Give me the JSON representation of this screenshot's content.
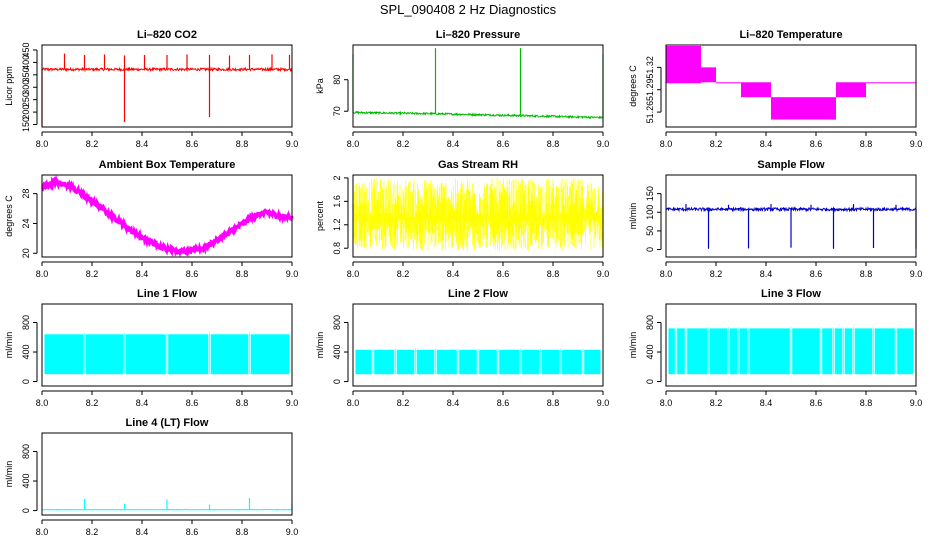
{
  "figure_title": "SPL_090408  2 Hz Diagnostics",
  "chart_data": [
    {
      "id": "co2",
      "type": "line",
      "title": "Li–820 CO2",
      "ylabel": "Licor ppm",
      "color": "#ff0000",
      "xlim": [
        8.0,
        9.0
      ],
      "ylim": [
        140,
        470
      ],
      "yticks": [
        150,
        200,
        250,
        300,
        350,
        400,
        450
      ],
      "series": [
        {
          "name": "CO2",
          "baseline": 372,
          "noise": 5,
          "dips": [
            [
              8.0,
              140
            ],
            [
              8.33,
              160
            ],
            [
              8.67,
              180
            ]
          ],
          "spikes": [
            [
              8.09,
              435
            ],
            [
              8.17,
              430
            ],
            [
              8.25,
              432
            ],
            [
              8.33,
              428
            ],
            [
              8.41,
              430
            ],
            [
              8.5,
              430
            ],
            [
              8.58,
              432
            ],
            [
              8.67,
              430
            ],
            [
              8.75,
              428
            ],
            [
              8.83,
              430
            ],
            [
              8.92,
              432
            ],
            [
              8.99,
              430
            ]
          ]
        }
      ]
    },
    {
      "id": "pressure",
      "type": "line",
      "title": "Li–820 Pressure",
      "ylabel": "kPa",
      "color": "#00bb00",
      "xlim": [
        8.0,
        9.0
      ],
      "ylim": [
        65,
        91
      ],
      "yticks": [
        70,
        80
      ],
      "series": [
        {
          "name": "Pressure",
          "points": [
            [
              8.0,
              69.6
            ],
            [
              8.33,
              69.2
            ],
            [
              8.67,
              68.6
            ],
            [
              9.0,
              68.0
            ]
          ],
          "noise": 0.3,
          "spikes": [
            [
              8.0,
              88
            ],
            [
              8.33,
              90
            ],
            [
              8.67,
              90
            ],
            [
              9.0,
              88
            ]
          ]
        }
      ]
    },
    {
      "id": "licor_temp",
      "type": "line",
      "title": "Li–820 Temperature",
      "ylabel": "degrees C",
      "color": "#ff00ff",
      "xlim": [
        8.0,
        9.0
      ],
      "ylim": [
        51.24,
        51.35
      ],
      "yticks": [
        51.26,
        51.29,
        51.32
      ],
      "series": [
        {
          "name": "Temperature",
          "bands": [
            [
              8.0,
              8.14,
              51.3,
              51.35
            ],
            [
              8.14,
              8.2,
              51.3,
              51.32
            ],
            [
              8.2,
              8.3,
              51.3,
              51.3
            ],
            [
              8.3,
              8.42,
              51.28,
              51.3
            ],
            [
              8.42,
              8.68,
              51.25,
              51.28
            ],
            [
              8.68,
              8.8,
              51.28,
              51.3
            ],
            [
              8.8,
              9.0,
              51.3,
              51.3
            ]
          ]
        }
      ]
    },
    {
      "id": "ambient_temp",
      "type": "line",
      "title": "Ambient Box Temperature",
      "ylabel": "degrees C",
      "color": "#ff00ff",
      "xlim": [
        8.0,
        9.0
      ],
      "ylim": [
        19.5,
        30.5
      ],
      "yticks": [
        20,
        24,
        28
      ],
      "series": [
        {
          "name": "Ambient",
          "points": [
            [
              8.0,
              28.8
            ],
            [
              8.05,
              29.6
            ],
            [
              8.1,
              29.2
            ],
            [
              8.2,
              27.0
            ],
            [
              8.3,
              24.5
            ],
            [
              8.4,
              22.0
            ],
            [
              8.5,
              20.6
            ],
            [
              8.57,
              20.2
            ],
            [
              8.65,
              20.8
            ],
            [
              8.75,
              22.8
            ],
            [
              8.85,
              25.0
            ],
            [
              8.9,
              25.5
            ],
            [
              8.95,
              25.0
            ],
            [
              9.0,
              24.8
            ]
          ],
          "noise": 0.3
        }
      ]
    },
    {
      "id": "rh",
      "type": "line",
      "title": "Gas Stream RH",
      "ylabel": "percent",
      "color": "#ffff00",
      "xlim": [
        8.0,
        9.0
      ],
      "ylim": [
        0.65,
        2.05
      ],
      "yticks": [
        0.8,
        1.2,
        1.6,
        2.0
      ],
      "series": [
        {
          "name": "RH",
          "min": 0.75,
          "max": 2.0,
          "center": 1.45
        }
      ]
    },
    {
      "id": "sample_flow",
      "type": "line",
      "title": "Sample Flow",
      "ylabel": "ml/min",
      "color": "#0000cc",
      "xlim": [
        8.0,
        9.0
      ],
      "ylim": [
        -20,
        200
      ],
      "yticks": [
        0,
        50,
        100,
        150
      ],
      "series": [
        {
          "name": "Sample",
          "baseline": 108,
          "noise": 4,
          "dips": [
            [
              8.17,
              2
            ],
            [
              8.33,
              3
            ],
            [
              8.5,
              5
            ],
            [
              8.67,
              2
            ],
            [
              8.83,
              4
            ],
            [
              9.0,
              2
            ]
          ],
          "spikes": [
            [
              8.08,
              122
            ],
            [
              8.25,
              120
            ],
            [
              8.42,
              122
            ],
            [
              8.58,
              120
            ],
            [
              8.75,
              122
            ],
            [
              8.92,
              120
            ]
          ]
        }
      ]
    },
    {
      "id": "line1",
      "type": "area",
      "title": "Line 1 Flow",
      "ylabel": "ml/min",
      "color": "#00ffff",
      "xlim": [
        8.0,
        9.0
      ],
      "ylim": [
        -60,
        1050
      ],
      "yticks": [
        0,
        400,
        800
      ],
      "series": [
        {
          "name": "Line 1",
          "low": 100,
          "high": 640,
          "gaps": [
            8.17,
            8.33,
            8.5,
            8.67,
            8.83
          ]
        }
      ]
    },
    {
      "id": "line2",
      "type": "area",
      "title": "Line 2 Flow",
      "ylabel": "ml/min",
      "color": "#00ffff",
      "xlim": [
        8.0,
        9.0
      ],
      "ylim": [
        -60,
        1050
      ],
      "yticks": [
        0,
        400,
        800
      ],
      "series": [
        {
          "name": "Line 2",
          "low": 100,
          "high": 430,
          "gaps": [
            8.08,
            8.17,
            8.25,
            8.33,
            8.42,
            8.5,
            8.58,
            8.67,
            8.75,
            8.83,
            8.92
          ]
        }
      ]
    },
    {
      "id": "line3",
      "type": "area",
      "title": "Line 3 Flow",
      "ylabel": "ml/min",
      "color": "#00ffff",
      "xlim": [
        8.0,
        9.0
      ],
      "ylim": [
        -60,
        1050
      ],
      "yticks": [
        0,
        400,
        800
      ],
      "series": [
        {
          "name": "Line 3",
          "low": 100,
          "high": 720,
          "gaps": [
            8.04,
            8.08,
            8.17,
            8.25,
            8.29,
            8.33,
            8.5,
            8.62,
            8.67,
            8.71,
            8.75,
            8.83,
            8.92
          ]
        }
      ]
    },
    {
      "id": "line4",
      "type": "line",
      "title": "Line 4 (LT) Flow",
      "ylabel": "ml/min",
      "color": "#00ffff",
      "xlim": [
        8.0,
        9.0
      ],
      "ylim": [
        -60,
        1050
      ],
      "yticks": [
        0,
        400,
        800
      ],
      "series": [
        {
          "name": "Line 4",
          "baseline": 12,
          "noise": 3,
          "spikes": [
            [
              8.17,
              160
            ],
            [
              8.33,
              90
            ],
            [
              8.5,
              150
            ],
            [
              8.67,
              80
            ],
            [
              8.83,
              170
            ],
            [
              9.0,
              100
            ]
          ]
        }
      ]
    }
  ],
  "xticks": [
    8.0,
    8.2,
    8.4,
    8.6,
    8.8,
    9.0
  ]
}
